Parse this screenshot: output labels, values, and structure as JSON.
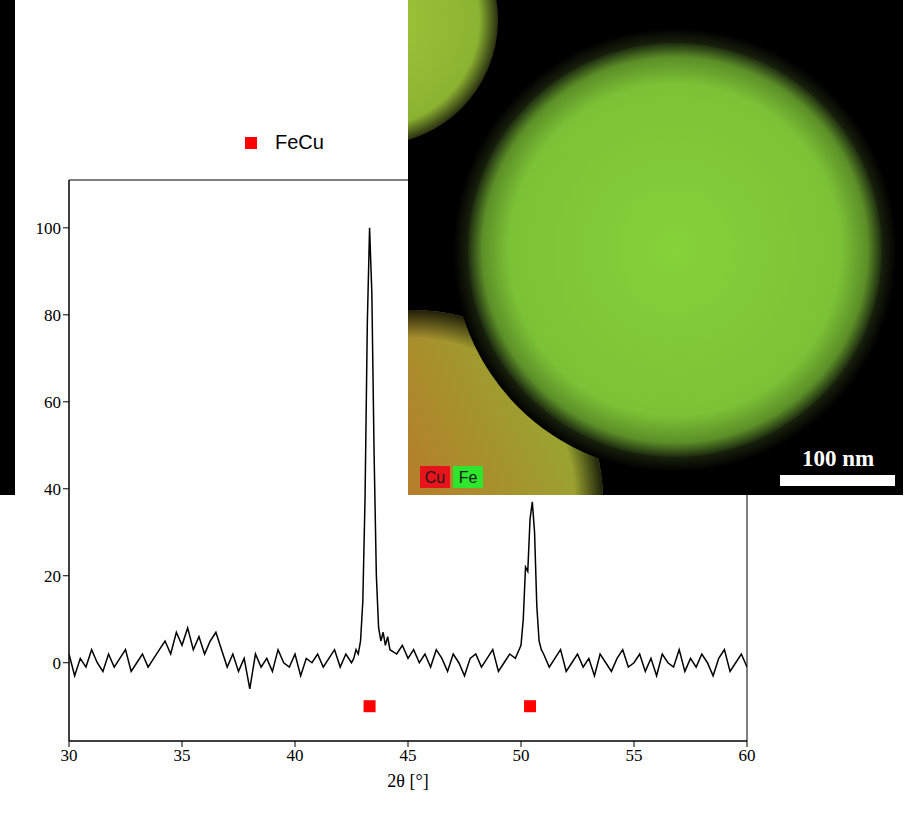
{
  "chart_data": {
    "type": "line",
    "x_label": "2θ [°]",
    "xlim": [
      30,
      60
    ],
    "xticks": [
      30,
      35,
      40,
      45,
      50,
      55,
      60
    ],
    "ylim": [
      -18,
      111
    ],
    "yticks": [
      0,
      20,
      40,
      60,
      80,
      100
    ],
    "legend": "top",
    "series": [
      {
        "color": "#000000",
        "x": [
          30,
          30.25,
          30.5,
          30.75,
          31,
          31.25,
          31.5,
          31.75,
          32,
          32.25,
          32.5,
          32.75,
          33,
          33.25,
          33.5,
          33.75,
          34,
          34.25,
          34.5,
          34.75,
          35,
          35.25,
          35.5,
          35.75,
          36,
          36.25,
          36.5,
          36.75,
          37,
          37.25,
          37.5,
          37.75,
          38,
          38.25,
          38.5,
          38.75,
          39,
          39.25,
          39.5,
          39.75,
          40,
          40.25,
          40.5,
          40.75,
          41,
          41.25,
          41.5,
          41.75,
          42,
          42.25,
          42.5,
          42.6,
          42.7,
          42.8,
          42.9,
          43,
          43.1,
          43.2,
          43.3,
          43.4,
          43.5,
          43.6,
          43.7,
          43.8,
          43.9,
          44,
          44.1,
          44.2,
          44.5,
          44.75,
          45,
          45.25,
          45.5,
          45.75,
          46,
          46.25,
          46.5,
          46.75,
          47,
          47.25,
          47.5,
          47.75,
          48,
          48.25,
          48.5,
          48.75,
          49,
          49.25,
          49.5,
          49.75,
          50,
          50.1,
          50.2,
          50.3,
          50.4,
          50.5,
          50.6,
          50.7,
          50.8,
          50.9,
          51,
          51.25,
          51.5,
          51.75,
          52,
          52.25,
          52.5,
          52.75,
          53,
          53.25,
          53.5,
          53.75,
          54,
          54.25,
          54.5,
          54.75,
          55,
          55.25,
          55.5,
          55.75,
          56,
          56.25,
          56.5,
          56.75,
          57,
          57.25,
          57.5,
          57.75,
          58,
          58.25,
          58.5,
          58.75,
          59,
          59.25,
          59.5,
          59.75,
          60
        ],
        "values": [
          2,
          -3,
          1,
          -1,
          3,
          0,
          -2,
          2,
          -1,
          1,
          3,
          -2,
          0,
          2,
          -1,
          1,
          3,
          5,
          2,
          7,
          4,
          8,
          3,
          6,
          2,
          5,
          7,
          3,
          -1,
          2,
          -2,
          1,
          -6,
          2,
          -1,
          1,
          -2,
          3,
          0,
          -1,
          2,
          -3,
          1,
          0,
          2,
          -1,
          1,
          3,
          -1,
          2,
          0,
          1,
          3,
          2,
          5,
          14,
          38,
          78,
          100,
          85,
          48,
          20,
          8,
          5,
          7,
          4,
          6,
          3,
          2,
          4,
          1,
          3,
          0,
          2,
          -1,
          3,
          1,
          -2,
          2,
          0,
          -3,
          1,
          2,
          -1,
          1,
          3,
          -2,
          0,
          2,
          1,
          4,
          10,
          22,
          21,
          33,
          37,
          30,
          13,
          5,
          3,
          2,
          -1,
          1,
          3,
          -2,
          0,
          2,
          -1,
          1,
          -3,
          2,
          0,
          -2,
          1,
          3,
          -1,
          0,
          2,
          -2,
          1,
          -3,
          2,
          0,
          -1,
          3,
          -2,
          1,
          -1,
          2,
          0,
          -3,
          1,
          3,
          -2,
          0,
          2,
          -1
        ]
      },
      {
        "name": "FeCu",
        "type": "scatter",
        "marker": "square",
        "color": "#ff0000",
        "x": [
          43.3,
          50.4
        ],
        "values": [
          -10,
          -10
        ]
      }
    ]
  },
  "inset": {
    "type": "image",
    "labels": [
      {
        "text": "Cu",
        "color": "#e8141b"
      },
      {
        "text": "Fe",
        "color": "#2ee62e"
      }
    ],
    "scale_bar": "100 nm"
  }
}
